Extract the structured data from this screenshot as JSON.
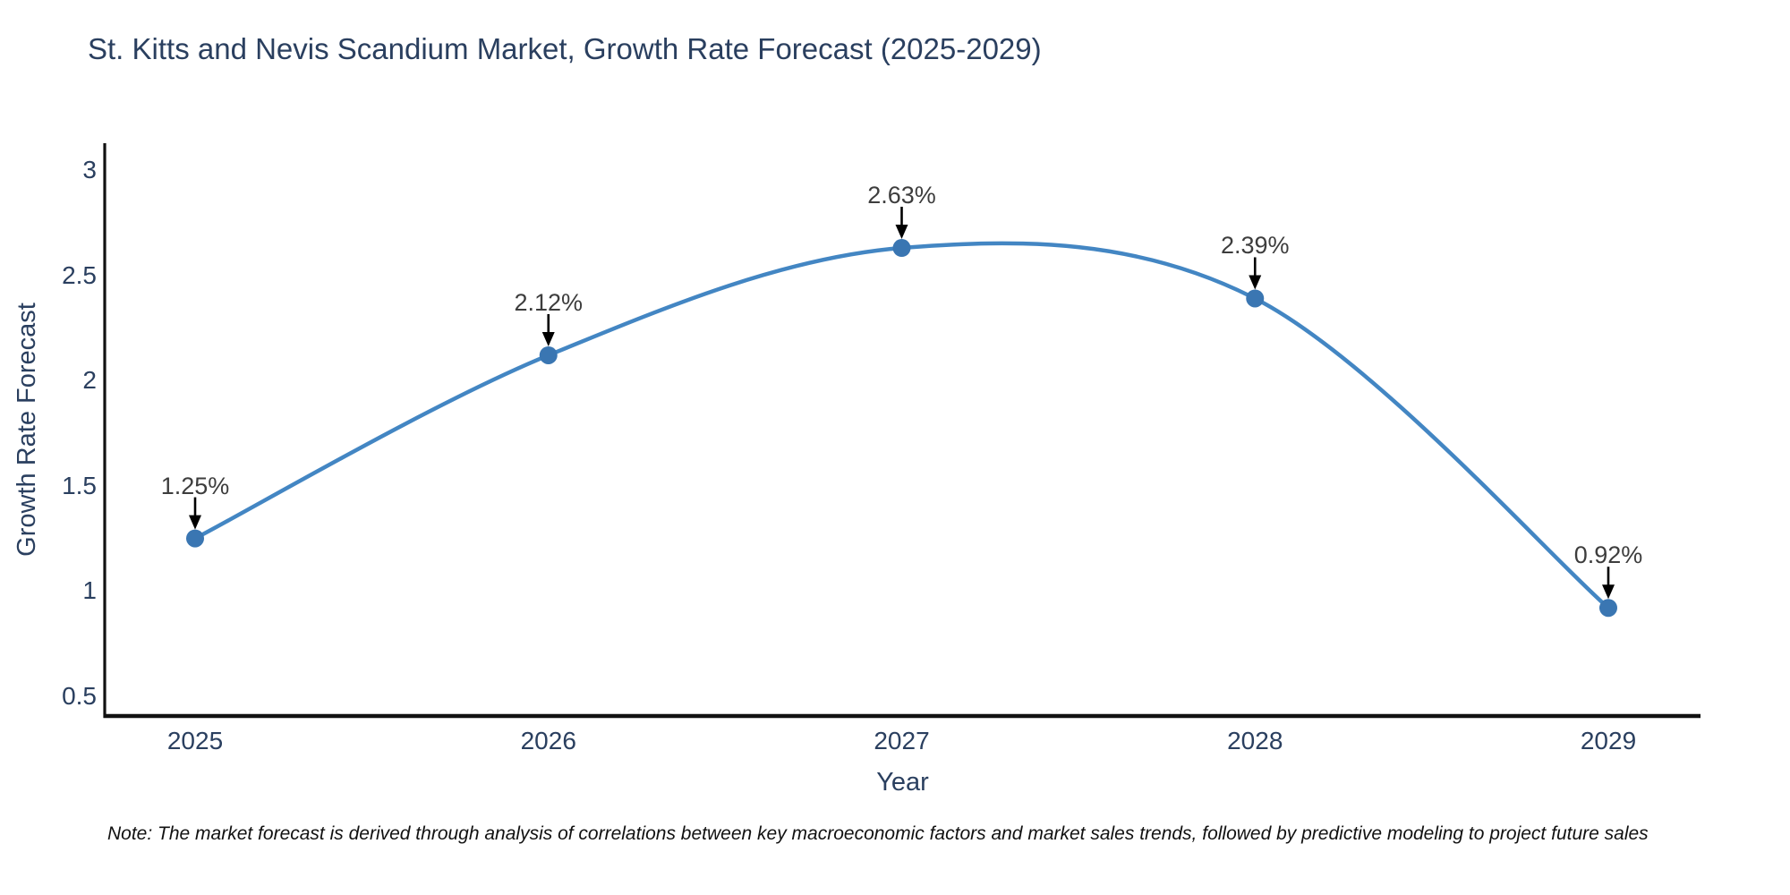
{
  "chart_data": {
    "type": "line",
    "line_shape": "spline",
    "title": "St. Kitts and Nevis Scandium Market, Growth Rate Forecast (2025-2029)",
    "xlabel": "Year",
    "ylabel": "Growth Rate Forecast",
    "categories": [
      "2025",
      "2026",
      "2027",
      "2028",
      "2029"
    ],
    "x": [
      2025,
      2026,
      2027,
      2028,
      2029
    ],
    "values": [
      1.25,
      2.12,
      2.63,
      2.39,
      0.92
    ],
    "point_labels": [
      "1.25%",
      "2.12%",
      "2.63%",
      "2.39%",
      "0.92%"
    ],
    "yticks": [
      0.5,
      1,
      1.5,
      2,
      2.5,
      3
    ],
    "ytick_labels": [
      "0.5",
      "1",
      "1.5",
      "2",
      "2.5",
      "3"
    ],
    "ylim": [
      0.4,
      3.1
    ],
    "grid": false,
    "legend": "none",
    "annotation_style": "value labels with downward arrows onto markers",
    "colors": {
      "line": "#4386c3",
      "marker": "#3a76b2",
      "axis": "#111111",
      "title_text": "#2a3f5f",
      "tick_text": "#2a3f5f",
      "annotation_text": "#3d3d3d",
      "arrow": "#000000",
      "background": "#ffffff"
    },
    "note": "Note: The market forecast is derived through analysis of correlations between key macroeconomic factors and market sales trends, followed by predictive modeling to project future sales"
  }
}
